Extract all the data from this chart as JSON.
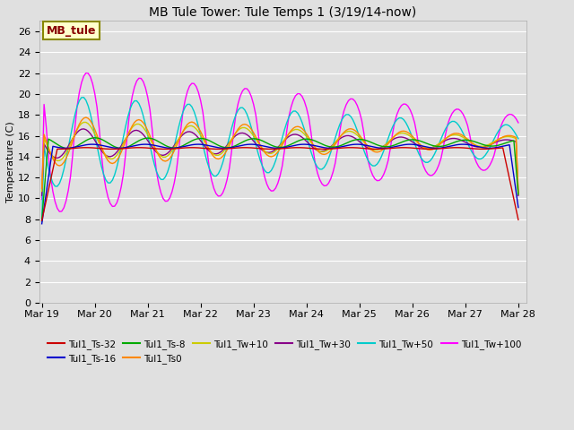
{
  "title": "MB Tule Tower: Tule Temps 1 (3/19/14-now)",
  "ylabel": "Temperature (C)",
  "ylim": [
    0,
    27
  ],
  "yticks": [
    0,
    2,
    4,
    6,
    8,
    10,
    12,
    14,
    16,
    18,
    20,
    22,
    24,
    26
  ],
  "xtick_labels": [
    "Mar 19",
    "Mar 20",
    "Mar 21",
    "Mar 22",
    "Mar 23",
    "Mar 24",
    "Mar 25",
    "Mar 26",
    "Mar 27",
    "Mar 28"
  ],
  "bg_color": "#e0e0e0",
  "series_colors": {
    "Tul1_Ts-32": "#cc0000",
    "Tul1_Ts-16": "#0000cc",
    "Tul1_Ts-8": "#00aa00",
    "Tul1_Ts0": "#ff8800",
    "Tul1_Tw+10": "#cccc00",
    "Tul1_Tw+30": "#880088",
    "Tul1_Tw+50": "#00cccc",
    "Tul1_Tw+100": "#ff00ff"
  },
  "legend_label": "MB_tule",
  "legend_box_facecolor": "#ffffcc",
  "legend_box_edgecolor": "#888800"
}
